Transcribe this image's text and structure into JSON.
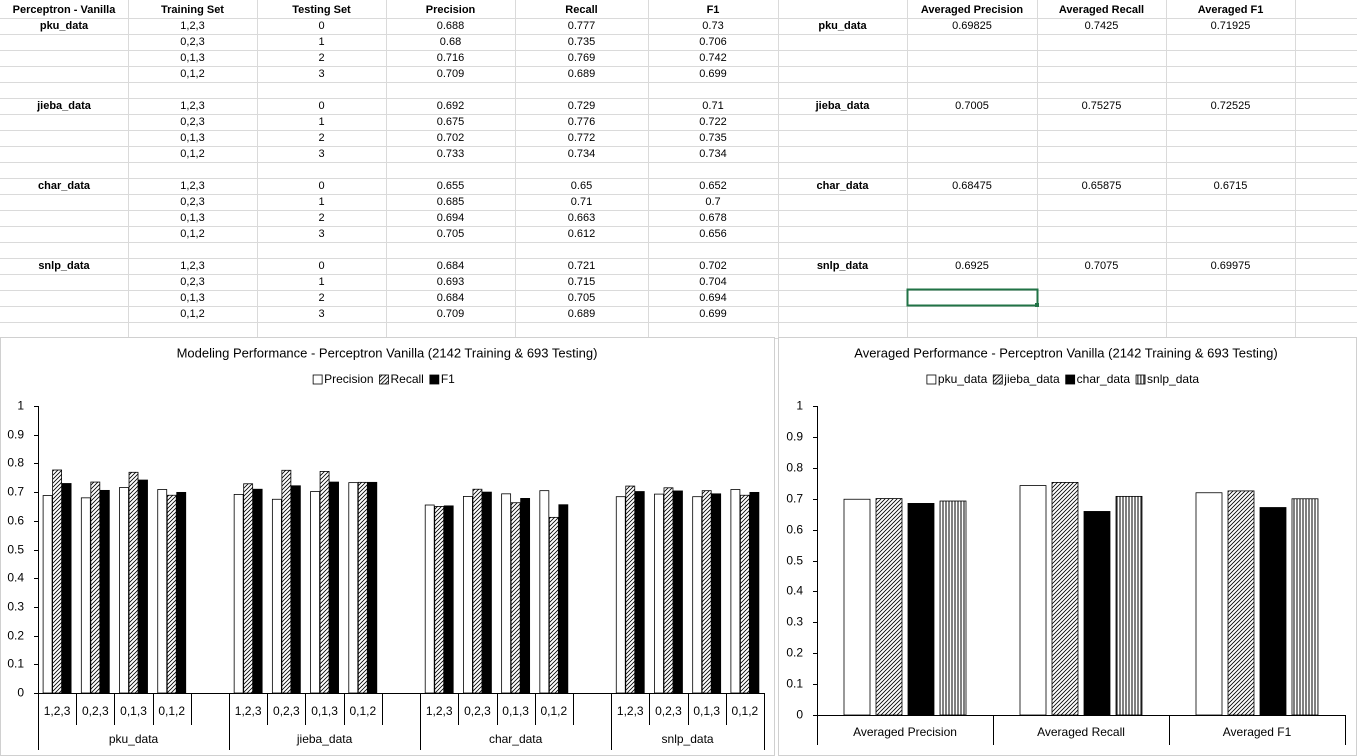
{
  "table": {
    "headers": [
      "Perceptron - Vanilla",
      "Training Set",
      "Testing Set",
      "Precision",
      "Recall",
      "F1"
    ],
    "avg_headers": [
      "Averaged Precision",
      "Averaged Recall",
      "Averaged F1"
    ],
    "groups": [
      {
        "name": "pku_data",
        "rows": [
          [
            "1,2,3",
            0,
            0.688,
            0.777,
            0.73
          ],
          [
            "0,2,3",
            1,
            0.68,
            0.735,
            0.706
          ],
          [
            "0,1,3",
            2,
            0.716,
            0.769,
            0.742
          ],
          [
            "0,1,2",
            3,
            0.709,
            0.689,
            0.699
          ]
        ],
        "avg": [
          0.69825,
          0.7425,
          0.71925
        ]
      },
      {
        "name": "jieba_data",
        "rows": [
          [
            "1,2,3",
            0,
            0.692,
            0.729,
            0.71
          ],
          [
            "0,2,3",
            1,
            0.675,
            0.776,
            0.722
          ],
          [
            "0,1,3",
            2,
            0.702,
            0.772,
            0.735
          ],
          [
            "0,1,2",
            3,
            0.733,
            0.734,
            0.734
          ]
        ],
        "avg": [
          0.7005,
          0.75275,
          0.72525
        ]
      },
      {
        "name": "char_data",
        "rows": [
          [
            "1,2,3",
            0,
            0.655,
            0.65,
            0.652
          ],
          [
            "0,2,3",
            1,
            0.685,
            0.71,
            0.7
          ],
          [
            "0,1,3",
            2,
            0.694,
            0.663,
            0.678
          ],
          [
            "0,1,2",
            3,
            0.705,
            0.612,
            0.656
          ]
        ],
        "avg": [
          0.68475,
          0.65875,
          0.6715
        ]
      },
      {
        "name": "snlp_data",
        "rows": [
          [
            "1,2,3",
            0,
            0.684,
            0.721,
            0.702
          ],
          [
            "0,2,3",
            1,
            0.693,
            0.715,
            0.704
          ],
          [
            "0,1,3",
            2,
            0.684,
            0.705,
            0.694
          ],
          [
            "0,1,2",
            3,
            0.709,
            0.689,
            0.699
          ]
        ],
        "avg": [
          0.6925,
          0.7075,
          0.69975
        ]
      }
    ]
  },
  "chart_data": [
    {
      "type": "bar",
      "title": "Modeling Performance - Perceptron Vanilla (2142 Training & 693 Testing)",
      "categories": [
        "1,2,3",
        "0,2,3",
        "0,1,3",
        "0,1,2",
        null,
        "1,2,3",
        "0,2,3",
        "0,1,3",
        "0,1,2",
        null,
        "1,2,3",
        "0,2,3",
        "0,1,3",
        "0,1,2",
        null,
        "1,2,3",
        "0,2,3",
        "0,1,3",
        "0,1,2"
      ],
      "groups": [
        "pku_data",
        "jieba_data",
        "char_data",
        "snlp_data"
      ],
      "series": [
        {
          "name": "Precision",
          "color": "#ffffff",
          "pattern": "solid",
          "values": [
            0.688,
            0.68,
            0.716,
            0.709,
            null,
            0.692,
            0.675,
            0.702,
            0.733,
            null,
            0.655,
            0.685,
            0.694,
            0.705,
            null,
            0.684,
            0.693,
            0.684,
            0.709
          ]
        },
        {
          "name": "Recall",
          "color": "#000000",
          "pattern": "diagonal",
          "values": [
            0.777,
            0.735,
            0.769,
            0.689,
            null,
            0.729,
            0.776,
            0.772,
            0.734,
            null,
            0.65,
            0.71,
            0.663,
            0.612,
            null,
            0.721,
            0.715,
            0.705,
            0.689
          ]
        },
        {
          "name": "F1",
          "color": "#000000",
          "pattern": "solid",
          "values": [
            0.73,
            0.706,
            0.742,
            0.699,
            null,
            0.71,
            0.722,
            0.735,
            0.734,
            null,
            0.652,
            0.7,
            0.678,
            0.656,
            null,
            0.702,
            0.704,
            0.694,
            0.699
          ]
        }
      ],
      "ylim": [
        0,
        1
      ],
      "yticks": [
        0,
        0.1,
        0.2,
        0.3,
        0.4,
        0.5,
        0.6,
        0.7,
        0.8,
        0.9,
        1
      ],
      "legend": "top"
    },
    {
      "type": "bar",
      "title": "Averaged Performance -  Perceptron Vanilla (2142 Training & 693 Testing)",
      "categories": [
        "Averaged Precision",
        "Averaged Recall",
        "Averaged F1"
      ],
      "series": [
        {
          "name": "pku_data",
          "color": "#ffffff",
          "pattern": "solid",
          "values": [
            0.69825,
            0.7425,
            0.71925
          ]
        },
        {
          "name": "jieba_data",
          "color": "#000000",
          "pattern": "diagonal",
          "values": [
            0.7005,
            0.75275,
            0.72525
          ]
        },
        {
          "name": "char_data",
          "color": "#000000",
          "pattern": "solid",
          "values": [
            0.68475,
            0.65875,
            0.6715
          ]
        },
        {
          "name": "snlp_data",
          "color": "#000000",
          "pattern": "vertical",
          "values": [
            0.6925,
            0.7075,
            0.69975
          ]
        }
      ],
      "ylim": [
        0,
        1
      ],
      "yticks": [
        0,
        0.1,
        0.2,
        0.3,
        0.4,
        0.5,
        0.6,
        0.7,
        0.8,
        0.9,
        1
      ],
      "legend": "top"
    }
  ]
}
